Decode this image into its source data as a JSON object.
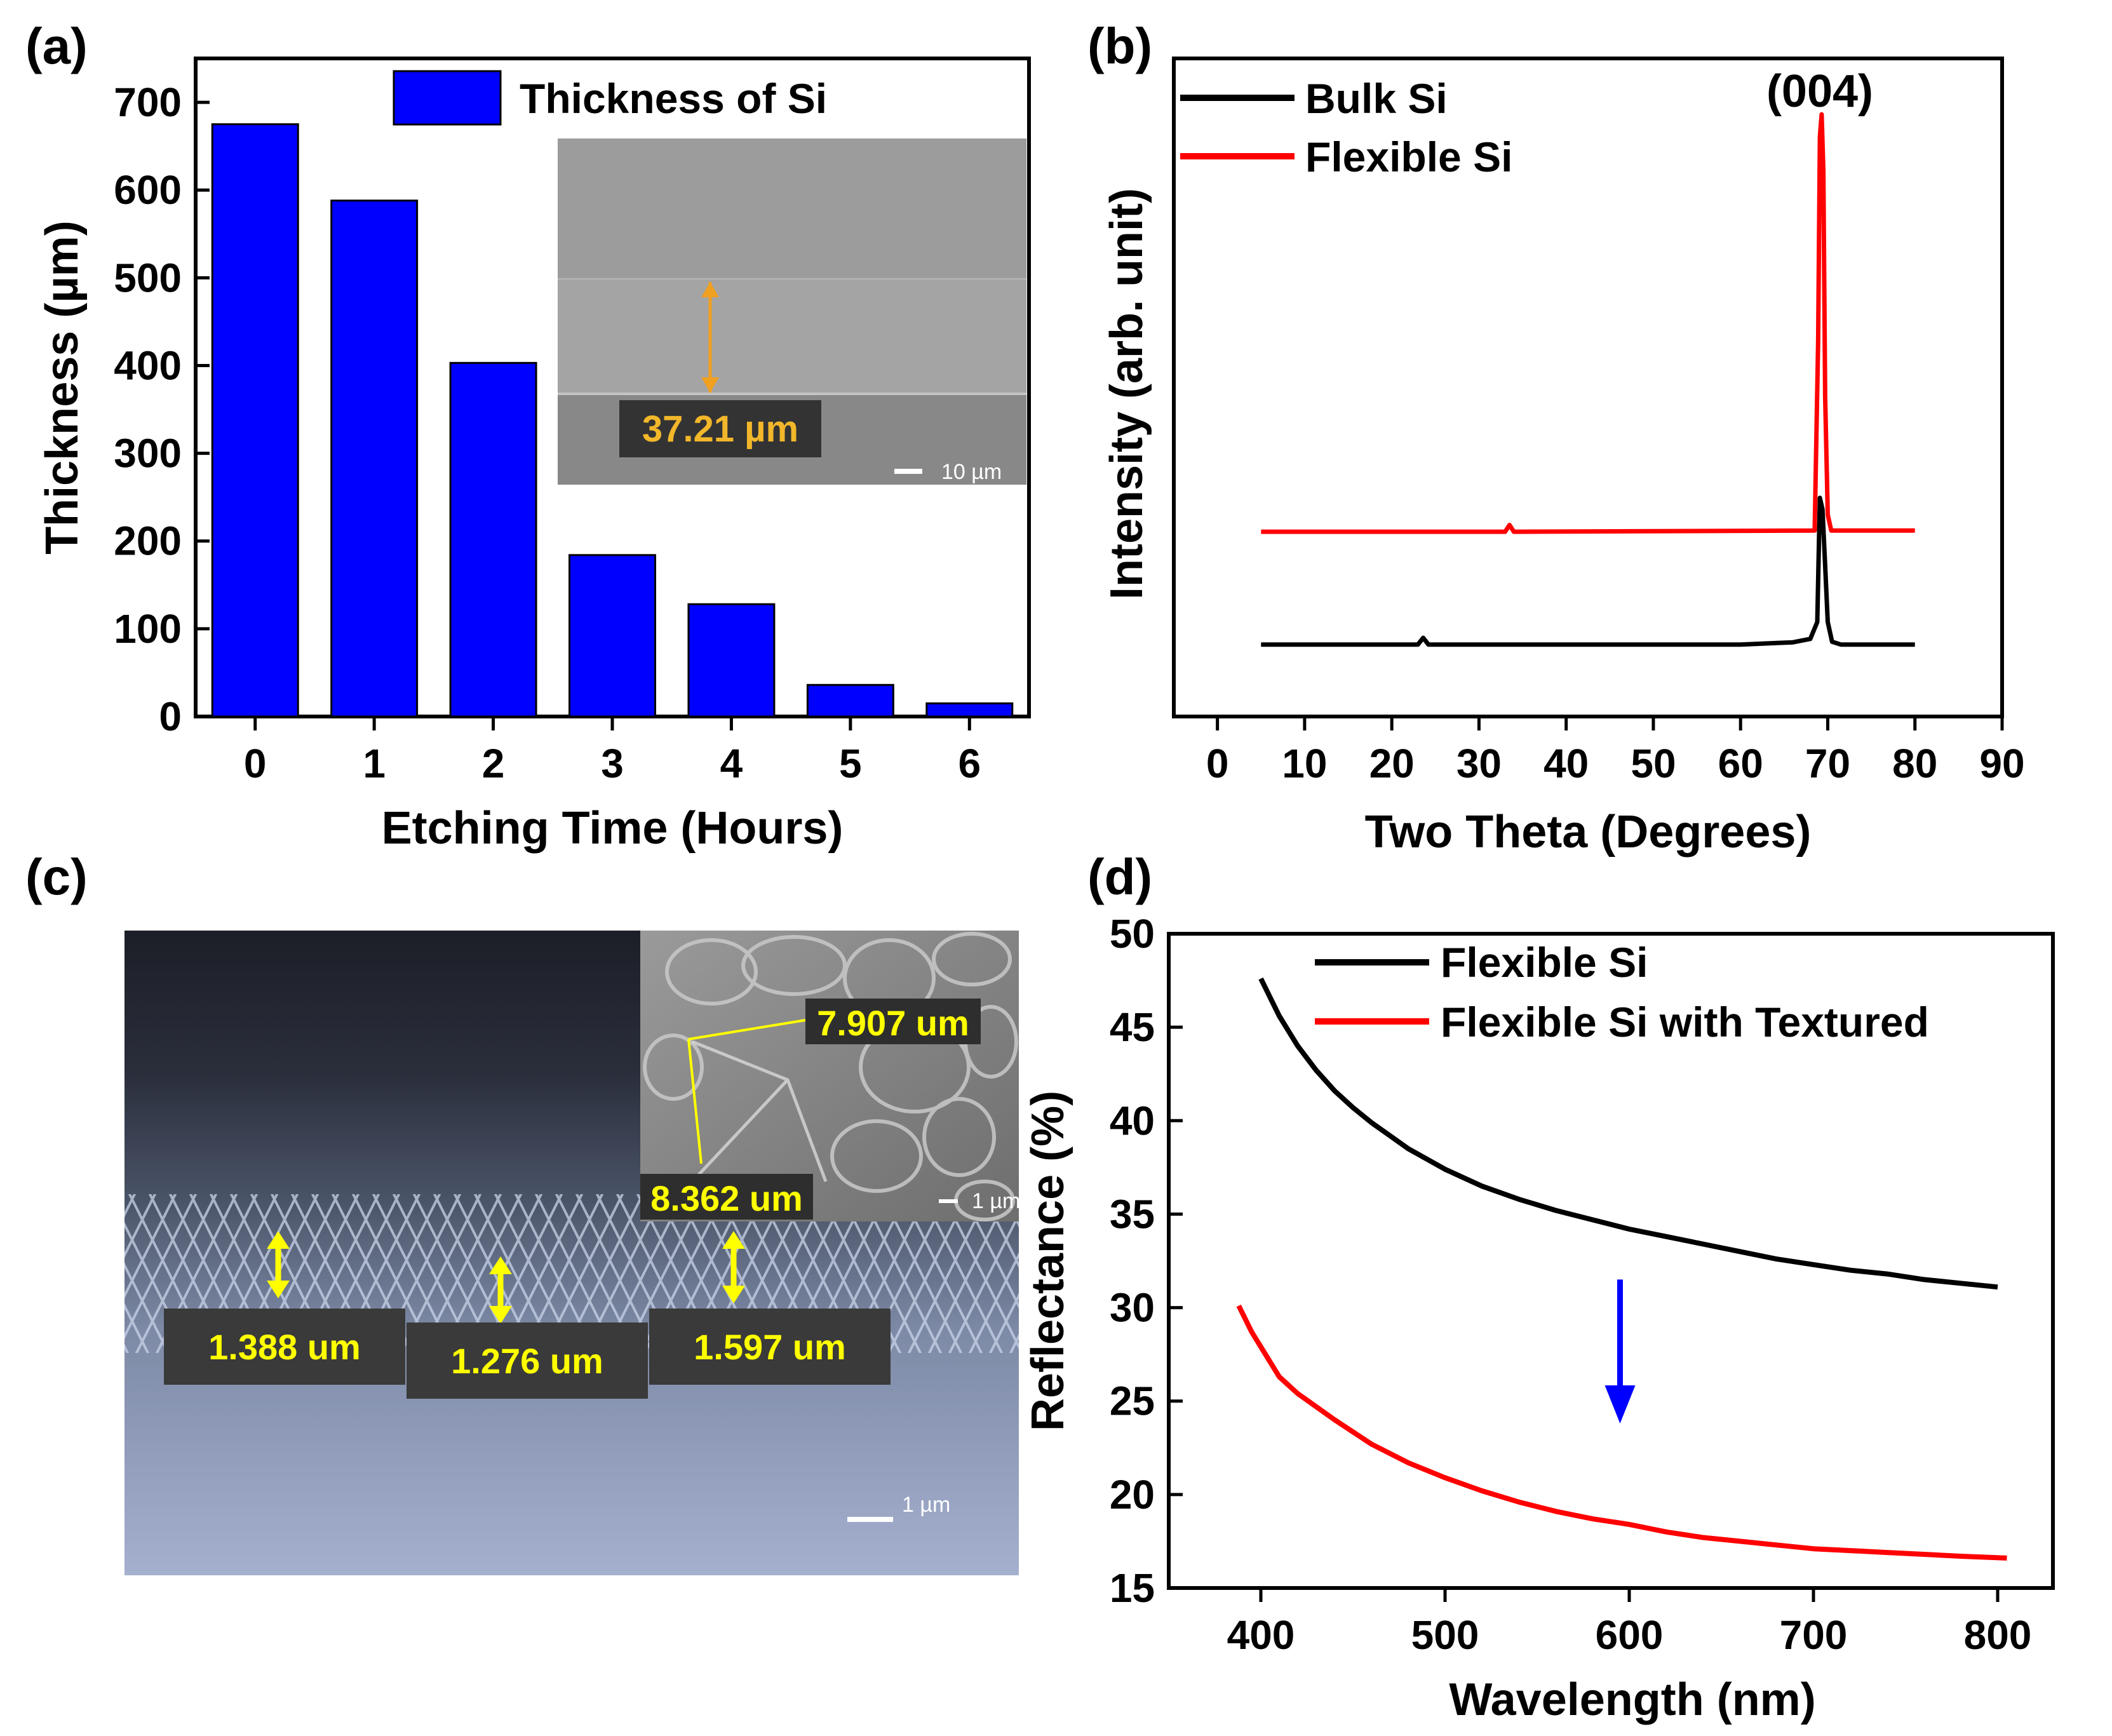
{
  "panels": {
    "a": {
      "label": "(a)"
    },
    "b": {
      "label": "(b)",
      "peak_label": "(004)"
    },
    "c": {
      "label": "(c)",
      "measurements": [
        "1.388 um",
        "1.276 um",
        "1.597 um"
      ],
      "inset_measurements": [
        "7.907 um",
        "8.362 um"
      ],
      "scale_bar": "1 µm",
      "inset_scale_bar": "1 µm"
    },
    "d": {
      "label": "(d)"
    }
  },
  "chart_data": [
    {
      "id": "a",
      "type": "bar",
      "title": "",
      "xlabel": "Etching Time (Hours)",
      "ylabel": "Thickness (µm)",
      "categories": [
        "0",
        "1",
        "2",
        "3",
        "4",
        "5",
        "6"
      ],
      "values": [
        675,
        588,
        403,
        184,
        128,
        36,
        15
      ],
      "ylim": [
        0,
        750
      ],
      "yticks": [
        "0",
        "100",
        "200",
        "300",
        "400",
        "500",
        "600",
        "700"
      ],
      "legend": [
        "Thickness of Si"
      ],
      "color": "#0000ff",
      "inset": {
        "measurement": "37.21 µm",
        "scale_bar": "10 µm"
      }
    },
    {
      "id": "b",
      "type": "line",
      "xlabel": "Two Theta (Degrees)",
      "ylabel": "Intensity (arb. unit)",
      "xlim": [
        -5,
        90
      ],
      "xticks": [
        "0",
        "10",
        "20",
        "30",
        "40",
        "50",
        "60",
        "70",
        "80",
        "90"
      ],
      "yticks_shown": false,
      "annotation": "(004)",
      "series": [
        {
          "name": "Bulk Si",
          "color": "#000000",
          "x": [
            5,
            23,
            23.6,
            24.2,
            60,
            66,
            68,
            68.8,
            69.1,
            69.4,
            69.7,
            70.0,
            70.5,
            71.5,
            80
          ],
          "y": [
            0.06,
            0.06,
            0.072,
            0.06,
            0.06,
            0.064,
            0.07,
            0.1,
            0.32,
            0.3,
            0.2,
            0.1,
            0.065,
            0.06,
            0.06
          ]
        },
        {
          "name": "Flexible Si",
          "color": "#ff0000",
          "x": [
            5,
            33,
            33.5,
            34,
            68.5,
            68.9,
            69.1,
            69.3,
            69.5,
            69.7,
            70.0,
            70.4,
            80
          ],
          "y": [
            0.26,
            0.26,
            0.272,
            0.26,
            0.262,
            0.6,
            0.96,
            1.0,
            0.9,
            0.5,
            0.29,
            0.262,
            0.262
          ]
        }
      ]
    },
    {
      "id": "d",
      "type": "line",
      "xlabel": "Wavelength (nm)",
      "ylabel": "Reflectance (%)",
      "xlim": [
        350,
        830
      ],
      "ylim": [
        15,
        50
      ],
      "xticks": [
        "400",
        "500",
        "600",
        "700",
        "800"
      ],
      "yticks": [
        "15",
        "20",
        "25",
        "30",
        "35",
        "40",
        "45",
        "50"
      ],
      "arrow": {
        "x": 595,
        "y_from": 31.5,
        "y_to": 23.8,
        "color": "#0000ff"
      },
      "series": [
        {
          "name": "Flexible Si",
          "color": "#000000",
          "x": [
            400,
            410,
            420,
            430,
            440,
            450,
            460,
            470,
            480,
            500,
            520,
            540,
            560,
            580,
            600,
            620,
            640,
            660,
            680,
            700,
            720,
            740,
            760,
            780,
            800
          ],
          "y": [
            47.6,
            45.6,
            44.0,
            42.7,
            41.6,
            40.7,
            39.9,
            39.2,
            38.5,
            37.4,
            36.5,
            35.8,
            35.2,
            34.7,
            34.2,
            33.8,
            33.4,
            33.0,
            32.6,
            32.3,
            32.0,
            31.8,
            31.5,
            31.3,
            31.1
          ]
        },
        {
          "name": "Flexible Si with Textured",
          "color": "#ff0000",
          "x": [
            388,
            395,
            400,
            410,
            420,
            430,
            440,
            460,
            480,
            500,
            520,
            540,
            560,
            580,
            600,
            620,
            640,
            660,
            680,
            700,
            720,
            740,
            760,
            780,
            805
          ],
          "y": [
            30.1,
            28.7,
            27.9,
            26.3,
            25.4,
            24.7,
            24.0,
            22.7,
            21.7,
            20.9,
            20.2,
            19.6,
            19.1,
            18.7,
            18.4,
            18.0,
            17.7,
            17.5,
            17.3,
            17.1,
            17.0,
            16.9,
            16.8,
            16.7,
            16.6
          ]
        }
      ]
    }
  ]
}
